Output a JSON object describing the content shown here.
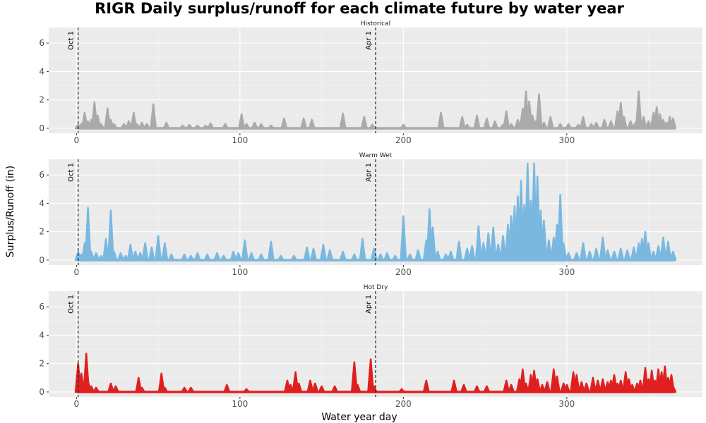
{
  "chart_data": {
    "type": "line",
    "title": "RIGR Daily surplus/runoff for each climate future by water year",
    "xlabel": "Water year day",
    "ylabel": "Surplus/Runoff (in)",
    "xlim": [
      -17,
      383
    ],
    "ylim": [
      -0.35,
      7.1
    ],
    "x_ticks": [
      0,
      100,
      200,
      300
    ],
    "y_ticks": [
      0,
      2,
      4,
      6
    ],
    "grid": true,
    "vlines": [
      {
        "x": 1,
        "label": "Oct 1"
      },
      {
        "x": 183,
        "label": "Apr 1"
      }
    ],
    "panels": [
      {
        "name": "Historical",
        "color": "#aaaaaa",
        "peaks": [
          [
            1,
            0.25
          ],
          [
            3,
            0.3
          ],
          [
            5,
            1.1
          ],
          [
            7,
            0.5
          ],
          [
            9,
            0.6
          ],
          [
            11,
            1.85
          ],
          [
            13,
            0.9
          ],
          [
            15,
            0.3
          ],
          [
            19,
            1.4
          ],
          [
            21,
            0.6
          ],
          [
            23,
            0.3
          ],
          [
            29,
            0.3
          ],
          [
            32,
            0.5
          ],
          [
            35,
            1.1
          ],
          [
            37,
            0.3
          ],
          [
            40,
            0.4
          ],
          [
            43,
            0.3
          ],
          [
            47,
            1.7
          ],
          [
            55,
            0.4
          ],
          [
            65,
            0.2
          ],
          [
            69,
            0.25
          ],
          [
            74,
            0.2
          ],
          [
            79,
            0.2
          ],
          [
            82,
            0.35
          ],
          [
            91,
            0.3
          ],
          [
            101,
            1.0
          ],
          [
            104,
            0.3
          ],
          [
            109,
            0.4
          ],
          [
            113,
            0.3
          ],
          [
            119,
            0.2
          ],
          [
            127,
            0.7
          ],
          [
            139,
            0.7
          ],
          [
            144,
            0.6
          ],
          [
            163,
            1.05
          ],
          [
            176,
            0.8
          ],
          [
            181,
            0.25
          ],
          [
            200,
            0.25
          ],
          [
            223,
            1.1
          ],
          [
            236,
            0.8
          ],
          [
            239,
            0.25
          ],
          [
            245,
            0.9
          ],
          [
            251,
            0.7
          ],
          [
            256,
            0.5
          ],
          [
            261,
            0.25
          ],
          [
            263,
            1.2
          ],
          [
            266,
            0.3
          ],
          [
            270,
            0.6
          ],
          [
            273,
            1.4
          ],
          [
            275,
            2.6
          ],
          [
            277,
            1.9
          ],
          [
            279,
            0.9
          ],
          [
            281,
            0.5
          ],
          [
            283,
            2.4
          ],
          [
            286,
            0.4
          ],
          [
            290,
            0.8
          ],
          [
            296,
            0.3
          ],
          [
            301,
            0.3
          ],
          [
            307,
            0.25
          ],
          [
            310,
            0.8
          ],
          [
            315,
            0.3
          ],
          [
            318,
            0.4
          ],
          [
            323,
            0.6
          ],
          [
            327,
            0.5
          ],
          [
            331,
            1.2
          ],
          [
            333,
            1.8
          ],
          [
            335,
            0.8
          ],
          [
            339,
            0.5
          ],
          [
            342,
            0.4
          ],
          [
            344,
            2.6
          ],
          [
            347,
            0.8
          ],
          [
            350,
            0.5
          ],
          [
            353,
            1.1
          ],
          [
            355,
            1.5
          ],
          [
            357,
            1.0
          ],
          [
            359,
            0.6
          ],
          [
            361,
            0.4
          ],
          [
            363,
            0.8
          ],
          [
            365,
            0.7
          ]
        ]
      },
      {
        "name": "Warm Wet",
        "color": "#7ab8e0",
        "peaks": [
          [
            1,
            0.6
          ],
          [
            3,
            0.4
          ],
          [
            5,
            1.2
          ],
          [
            7,
            3.7
          ],
          [
            9,
            0.6
          ],
          [
            12,
            0.5
          ],
          [
            15,
            0.3
          ],
          [
            18,
            1.5
          ],
          [
            21,
            3.5
          ],
          [
            23,
            0.6
          ],
          [
            27,
            0.5
          ],
          [
            30,
            0.3
          ],
          [
            33,
            1.1
          ],
          [
            36,
            0.6
          ],
          [
            39,
            0.5
          ],
          [
            42,
            1.2
          ],
          [
            46,
            0.9
          ],
          [
            50,
            1.7
          ],
          [
            54,
            1.2
          ],
          [
            58,
            0.4
          ],
          [
            66,
            0.4
          ],
          [
            70,
            0.3
          ],
          [
            74,
            0.5
          ],
          [
            80,
            0.4
          ],
          [
            86,
            0.5
          ],
          [
            90,
            0.3
          ],
          [
            96,
            0.6
          ],
          [
            99,
            0.5
          ],
          [
            103,
            1.4
          ],
          [
            107,
            0.5
          ],
          [
            113,
            0.4
          ],
          [
            119,
            1.3
          ],
          [
            125,
            0.3
          ],
          [
            133,
            0.3
          ],
          [
            141,
            0.9
          ],
          [
            145,
            0.8
          ],
          [
            151,
            1.1
          ],
          [
            155,
            0.7
          ],
          [
            163,
            0.6
          ],
          [
            170,
            0.4
          ],
          [
            175,
            1.5
          ],
          [
            182,
            0.8
          ],
          [
            186,
            0.4
          ],
          [
            190,
            0.5
          ],
          [
            195,
            0.3
          ],
          [
            200,
            3.1
          ],
          [
            204,
            0.4
          ],
          [
            209,
            0.7
          ],
          [
            214,
            1.4
          ],
          [
            216,
            3.6
          ],
          [
            218,
            2.3
          ],
          [
            221,
            0.6
          ],
          [
            226,
            0.4
          ],
          [
            229,
            0.6
          ],
          [
            234,
            1.3
          ],
          [
            239,
            0.8
          ],
          [
            242,
            1.0
          ],
          [
            246,
            2.4
          ],
          [
            249,
            1.2
          ],
          [
            252,
            1.9
          ],
          [
            255,
            2.3
          ],
          [
            258,
            1.1
          ],
          [
            261,
            1.7
          ],
          [
            264,
            2.5
          ],
          [
            266,
            3.1
          ],
          [
            268,
            3.8
          ],
          [
            270,
            4.5
          ],
          [
            272,
            5.6
          ],
          [
            274,
            3.9
          ],
          [
            276,
            6.8
          ],
          [
            278,
            4.2
          ],
          [
            280,
            6.8
          ],
          [
            282,
            5.9
          ],
          [
            284,
            3.5
          ],
          [
            286,
            2.8
          ],
          [
            289,
            1.4
          ],
          [
            292,
            1.6
          ],
          [
            294,
            2.5
          ],
          [
            296,
            4.6
          ],
          [
            298,
            1.2
          ],
          [
            301,
            0.5
          ],
          [
            306,
            0.5
          ],
          [
            310,
            1.2
          ],
          [
            314,
            0.6
          ],
          [
            318,
            0.8
          ],
          [
            322,
            1.6
          ],
          [
            325,
            0.7
          ],
          [
            329,
            0.6
          ],
          [
            333,
            0.8
          ],
          [
            337,
            0.7
          ],
          [
            341,
            0.9
          ],
          [
            344,
            1.2
          ],
          [
            346,
            1.5
          ],
          [
            348,
            2.0
          ],
          [
            350,
            1.2
          ],
          [
            353,
            0.6
          ],
          [
            356,
            1.0
          ],
          [
            359,
            1.6
          ],
          [
            362,
            1.3
          ],
          [
            365,
            0.6
          ]
        ]
      },
      {
        "name": "Hot Dry",
        "color": "#e02020",
        "peaks": [
          [
            1,
            2.0
          ],
          [
            2,
            1.1
          ],
          [
            3,
            1.3
          ],
          [
            4,
            0.6
          ],
          [
            6,
            2.7
          ],
          [
            7,
            0.8
          ],
          [
            9,
            0.4
          ],
          [
            12,
            0.3
          ],
          [
            21,
            0.6
          ],
          [
            24,
            0.4
          ],
          [
            38,
            1.0
          ],
          [
            40,
            0.3
          ],
          [
            52,
            1.3
          ],
          [
            54,
            0.3
          ],
          [
            66,
            0.3
          ],
          [
            70,
            0.3
          ],
          [
            92,
            0.5
          ],
          [
            104,
            0.2
          ],
          [
            129,
            0.8
          ],
          [
            131,
            0.5
          ],
          [
            134,
            1.4
          ],
          [
            136,
            0.6
          ],
          [
            143,
            0.8
          ],
          [
            146,
            0.6
          ],
          [
            150,
            0.4
          ],
          [
            158,
            0.4
          ],
          [
            170,
            2.1
          ],
          [
            172,
            0.5
          ],
          [
            180,
            2.3
          ],
          [
            182,
            0.4
          ],
          [
            199,
            0.2
          ],
          [
            214,
            0.8
          ],
          [
            231,
            0.8
          ],
          [
            237,
            0.5
          ],
          [
            245,
            0.4
          ],
          [
            251,
            0.4
          ],
          [
            263,
            0.8
          ],
          [
            266,
            0.5
          ],
          [
            271,
            0.9
          ],
          [
            273,
            1.6
          ],
          [
            275,
            0.6
          ],
          [
            278,
            1.2
          ],
          [
            280,
            1.5
          ],
          [
            282,
            0.9
          ],
          [
            285,
            0.5
          ],
          [
            288,
            0.7
          ],
          [
            292,
            1.6
          ],
          [
            294,
            1.1
          ],
          [
            298,
            0.6
          ],
          [
            300,
            0.5
          ],
          [
            304,
            1.4
          ],
          [
            306,
            1.2
          ],
          [
            309,
            0.7
          ],
          [
            312,
            0.6
          ],
          [
            316,
            1.0
          ],
          [
            319,
            0.8
          ],
          [
            322,
            0.9
          ],
          [
            325,
            0.7
          ],
          [
            327,
            0.8
          ],
          [
            329,
            1.2
          ],
          [
            331,
            0.6
          ],
          [
            333,
            0.8
          ],
          [
            336,
            1.4
          ],
          [
            338,
            0.9
          ],
          [
            340,
            0.5
          ],
          [
            343,
            0.6
          ],
          [
            345,
            0.8
          ],
          [
            348,
            1.7
          ],
          [
            350,
            0.9
          ],
          [
            352,
            1.5
          ],
          [
            354,
            0.8
          ],
          [
            356,
            1.6
          ],
          [
            358,
            1.4
          ],
          [
            360,
            1.8
          ],
          [
            362,
            1.0
          ],
          [
            364,
            1.2
          ],
          [
            365,
            0.4
          ]
        ]
      }
    ]
  }
}
